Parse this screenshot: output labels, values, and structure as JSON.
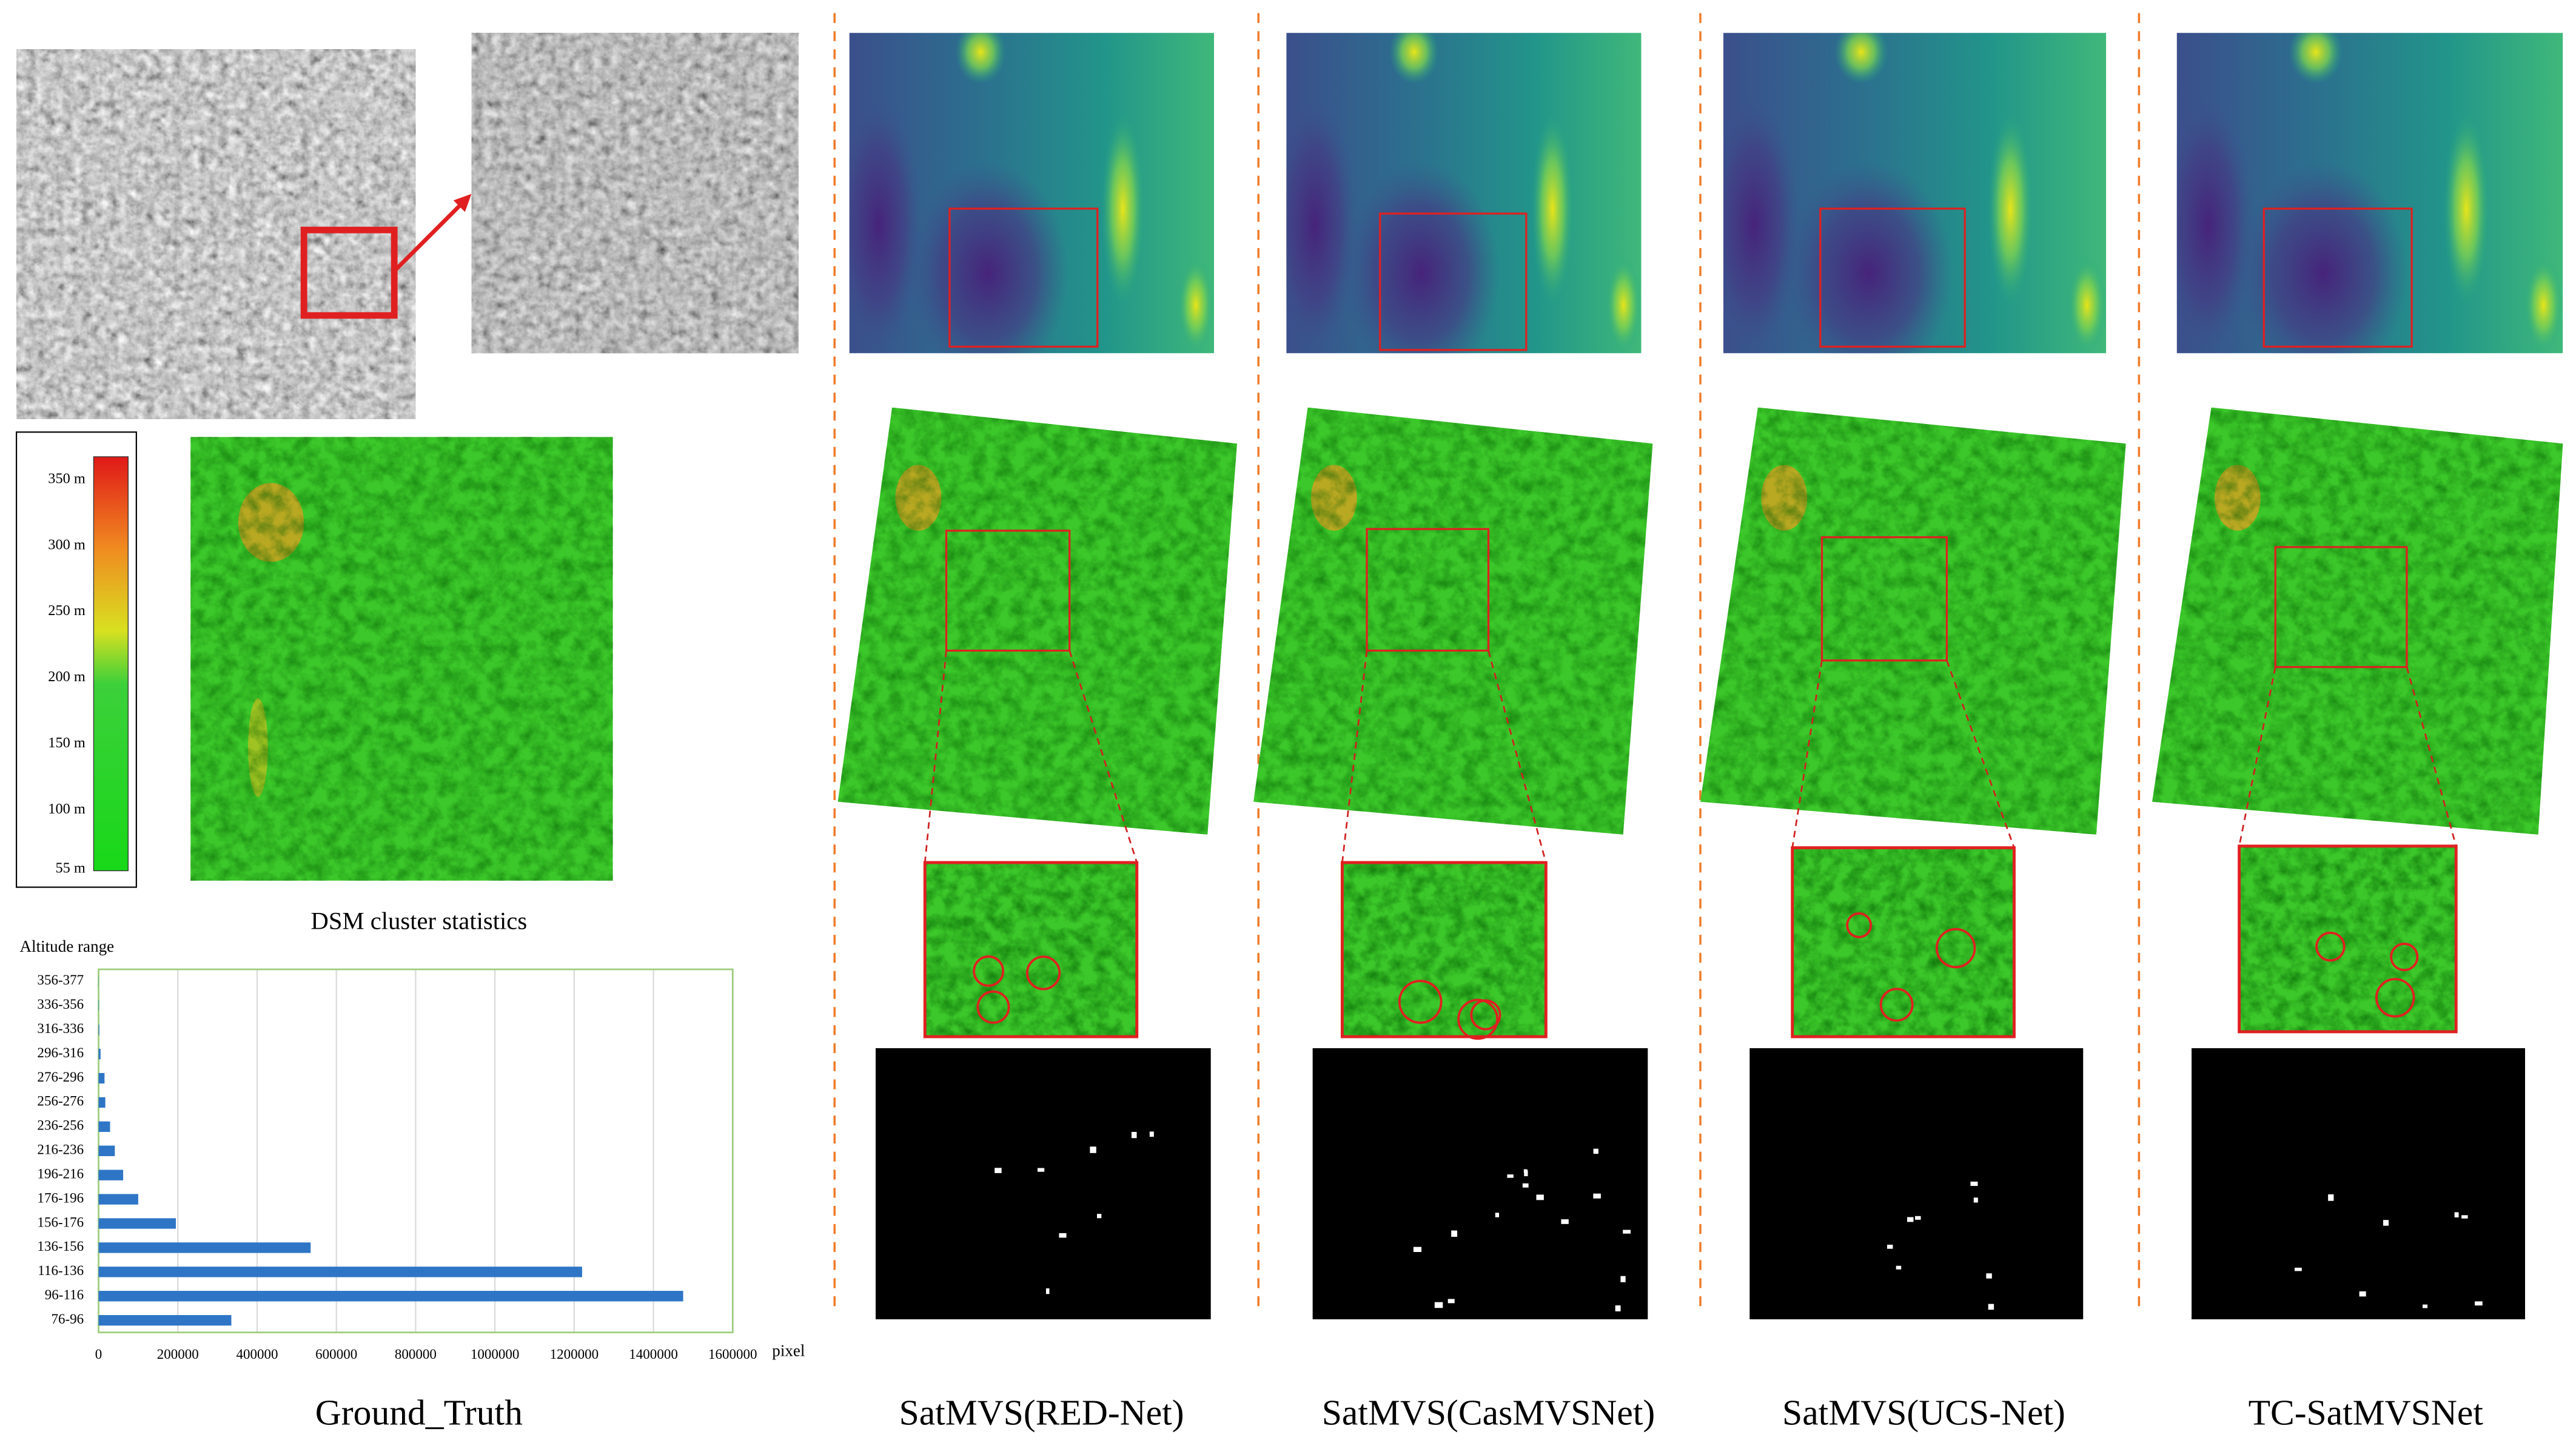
{
  "chart_data": {
    "type": "bar",
    "orientation": "horizontal",
    "title": "DSM cluster statistics",
    "y_label": "Altitude range",
    "x_label": "pixel",
    "categories": [
      "76-96",
      "96-116",
      "116-136",
      "136-156",
      "156-176",
      "176-196",
      "196-216",
      "216-236",
      "236-256",
      "256-276",
      "276-296",
      "296-316",
      "316-336",
      "336-356",
      "356-377"
    ],
    "values": [
      335000,
      1475000,
      1220000,
      535000,
      195000,
      100000,
      62000,
      41000,
      29000,
      17000,
      15000,
      5000,
      2000,
      1000,
      500
    ],
    "color": "#2e75c6",
    "xlim": [
      0,
      1600000
    ],
    "xticks": [
      0,
      200000,
      400000,
      600000,
      800000,
      1000000,
      1200000,
      1400000,
      1600000
    ],
    "grid": true
  },
  "colorbar": {
    "labels": [
      "350 m",
      "300 m",
      "250 m",
      "200 m",
      "150 m",
      "100 m",
      "55 m"
    ]
  },
  "captions": [
    "Ground_Truth",
    "SatMVS(RED-Net)",
    "SatMVS(CasMVSNet)",
    "SatMVS(UCS-Net)",
    "TC-SatMVSNet"
  ]
}
